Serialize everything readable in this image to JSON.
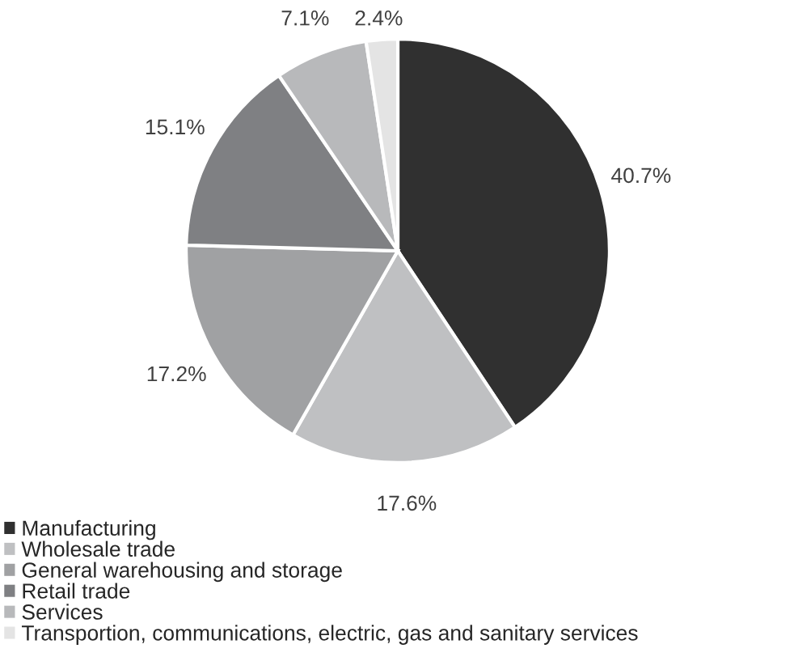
{
  "chart_data": {
    "type": "pie",
    "categories": [
      "Manufacturing",
      "Wholesale trade",
      "General warehousing and storage",
      "Retail trade",
      "Services",
      "Transportion, communications, electric, gas and sanitary services"
    ],
    "values": [
      40.7,
      17.6,
      17.2,
      15.1,
      7.1,
      2.4
    ],
    "value_labels": [
      "40.7%",
      "17.6%",
      "17.2%",
      "15.1%",
      "7.1%",
      "2.4%"
    ],
    "colors": [
      "#303030",
      "#bfc0c2",
      "#a0a1a3",
      "#7f8083",
      "#b8b9bb",
      "#e4e4e4"
    ],
    "legend": "bottom"
  }
}
